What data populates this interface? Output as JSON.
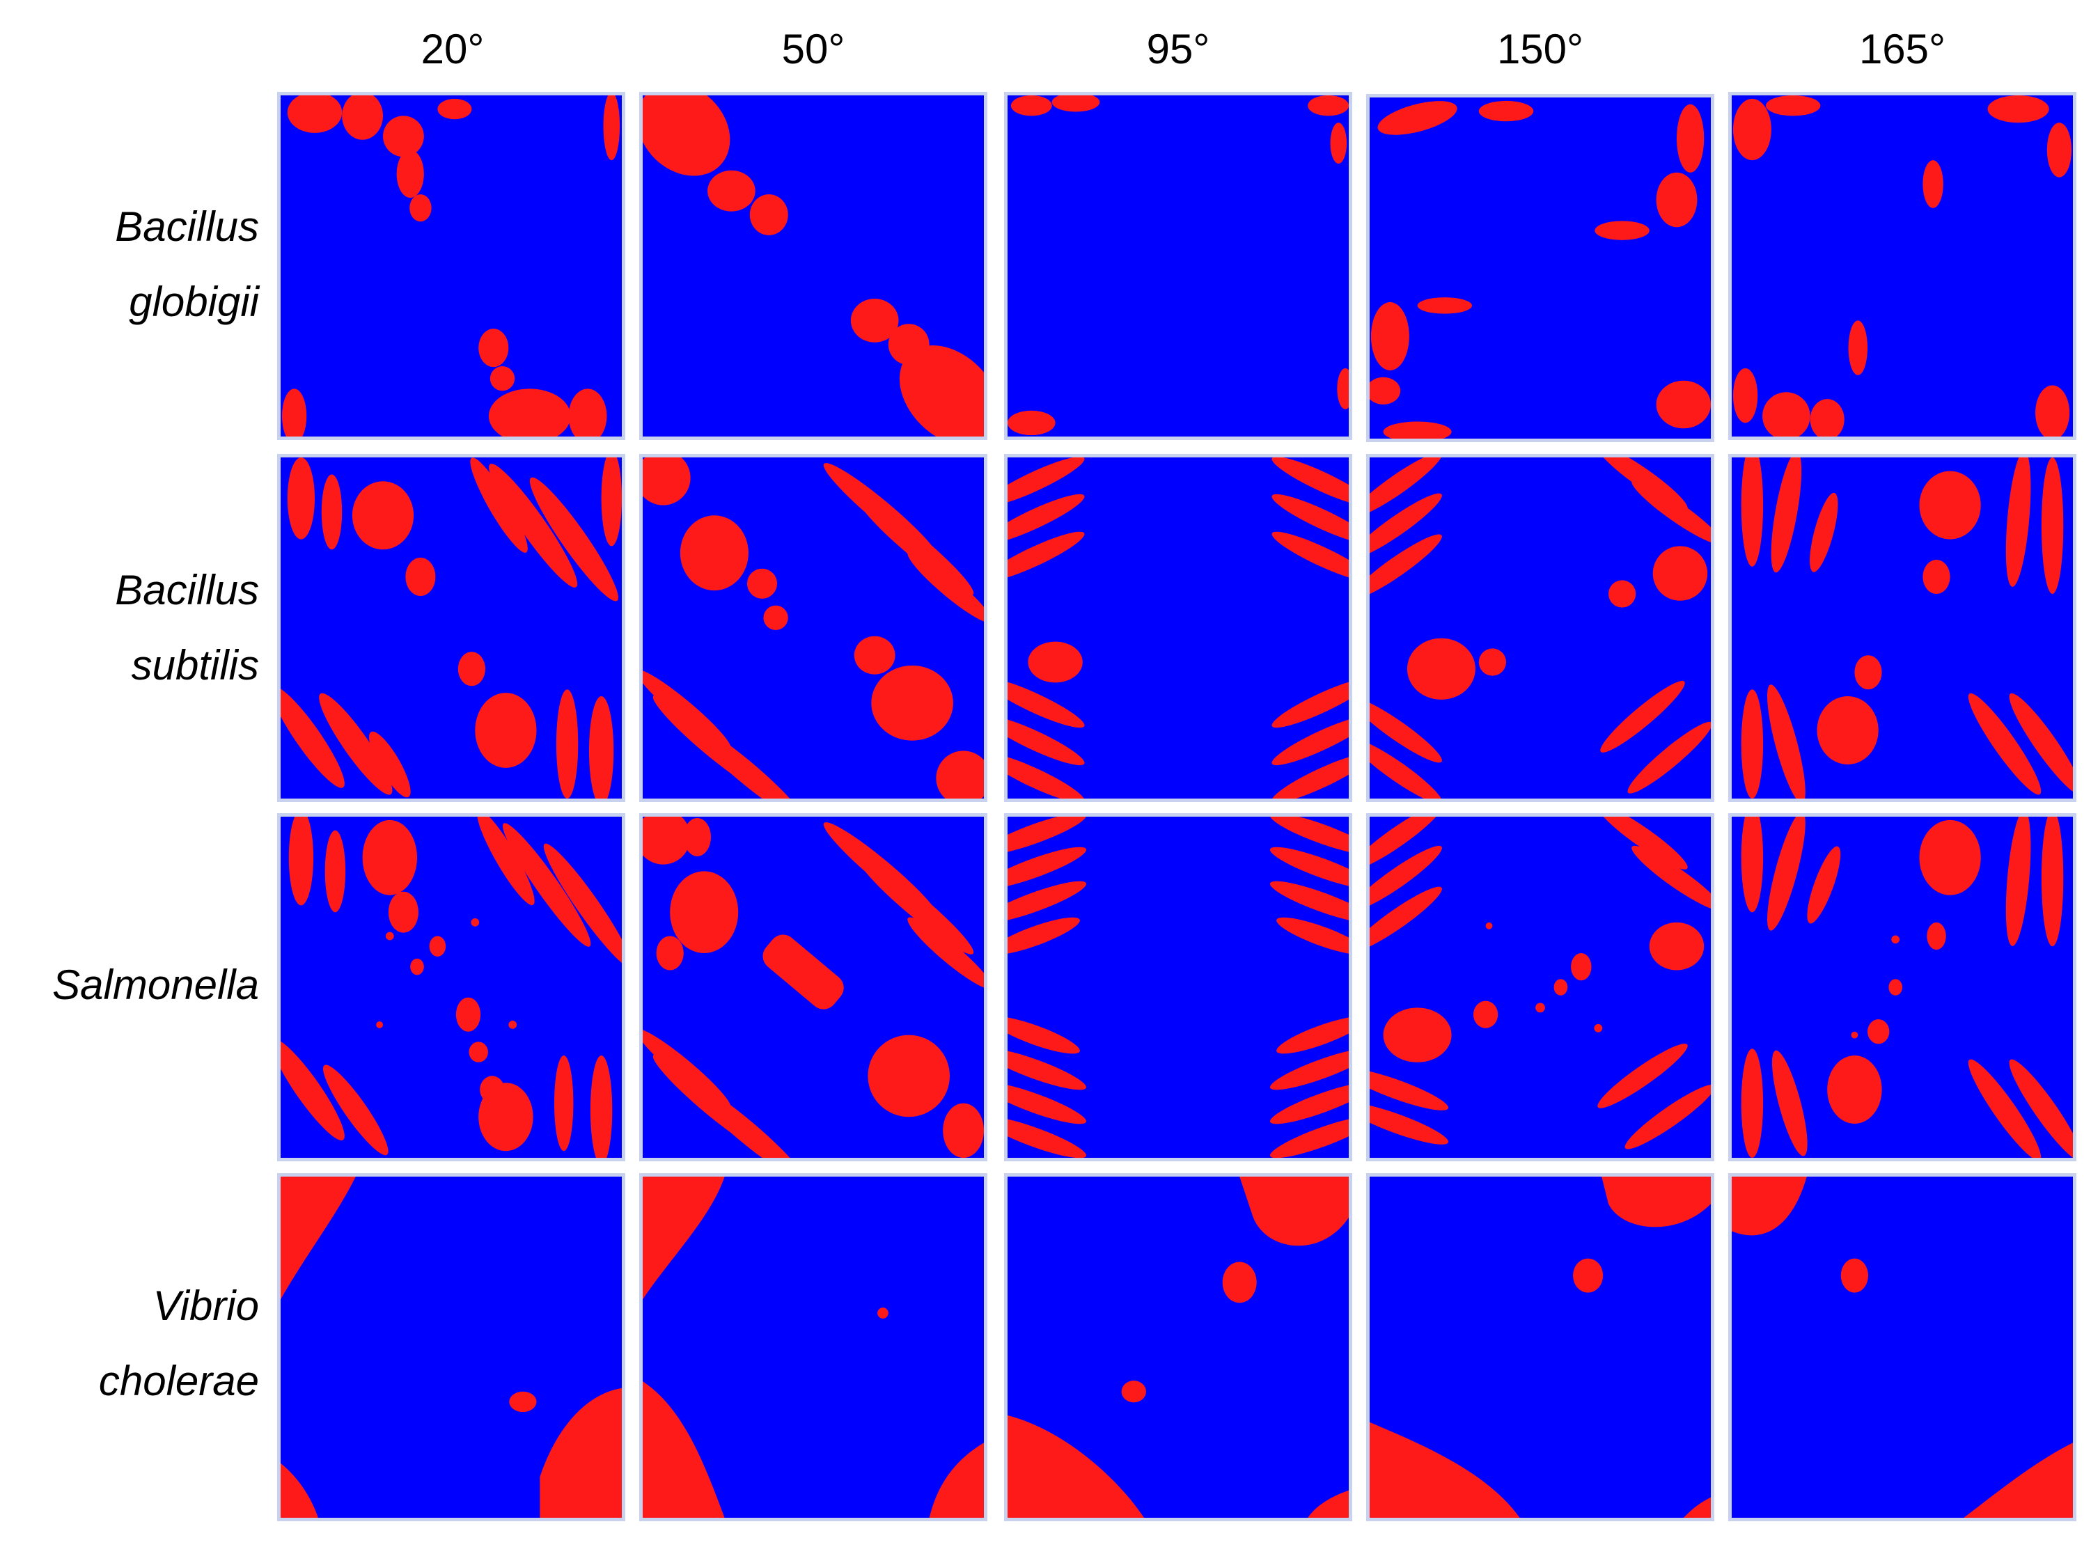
{
  "columns": [
    "20°",
    "50°",
    "95°",
    "150°",
    "165°"
  ],
  "rows": [
    {
      "lines": [
        "Bacillus",
        "globigii"
      ]
    },
    {
      "lines": [
        "Bacillus",
        "subtilis"
      ]
    },
    {
      "lines": [
        "Salmonella"
      ]
    },
    {
      "lines": [
        "Vibrio",
        "cholerae"
      ]
    }
  ],
  "colors": {
    "background": "#0000ff",
    "pattern": "#ff1a1a",
    "border": "#c8d2ee"
  }
}
